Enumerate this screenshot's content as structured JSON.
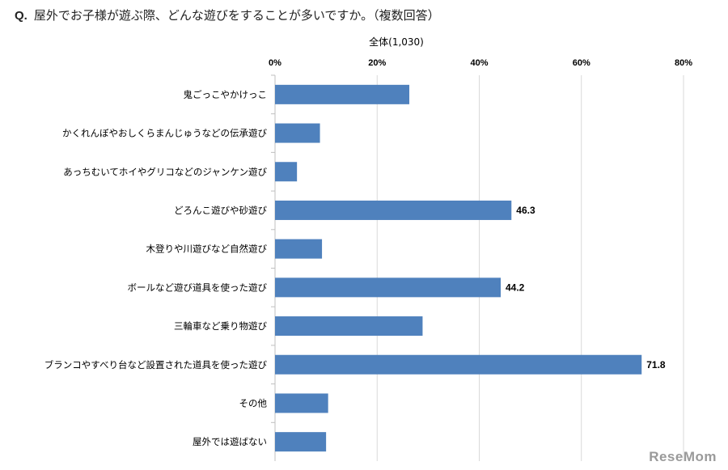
{
  "question": {
    "prefix": "Q.",
    "text": "屋外でお子様が遊ぶ際、どんな遊びをすることが多いですか。（複数回答）"
  },
  "watermark": "ReseMom",
  "colors": {
    "bar": "#4f81bd",
    "grid": "#d9d9d9"
  },
  "chart_data": {
    "type": "bar",
    "orientation": "horizontal",
    "title": "全体(1,030)",
    "xlim": [
      0,
      80
    ],
    "x_ticks": [
      "0%",
      "20%",
      "40%",
      "60%",
      "80%"
    ],
    "x_tick_values": [
      0,
      20,
      40,
      60,
      80
    ],
    "grid": true,
    "categories": [
      "鬼ごっこやかけっこ",
      "かくれんぼやおしくらまんじゅうなどの伝承遊び",
      "あっちむいてホイやグリコなどのジャンケン遊び",
      "どろんこ遊びや砂遊び",
      "木登りや川遊びなど自然遊び",
      "ボールなど遊び道具を使った遊び",
      "三輪車など乗り物遊び",
      "ブランコやすべり台など設置された道具を使った遊び",
      "その他",
      "屋外では遊ばない"
    ],
    "values": [
      26.3,
      8.8,
      4.3,
      46.3,
      9.2,
      44.2,
      28.9,
      71.8,
      10.4,
      10.0
    ],
    "data_labels": [
      "",
      "",
      "",
      "46.3",
      "",
      "44.2",
      "",
      "71.8",
      "",
      ""
    ]
  }
}
